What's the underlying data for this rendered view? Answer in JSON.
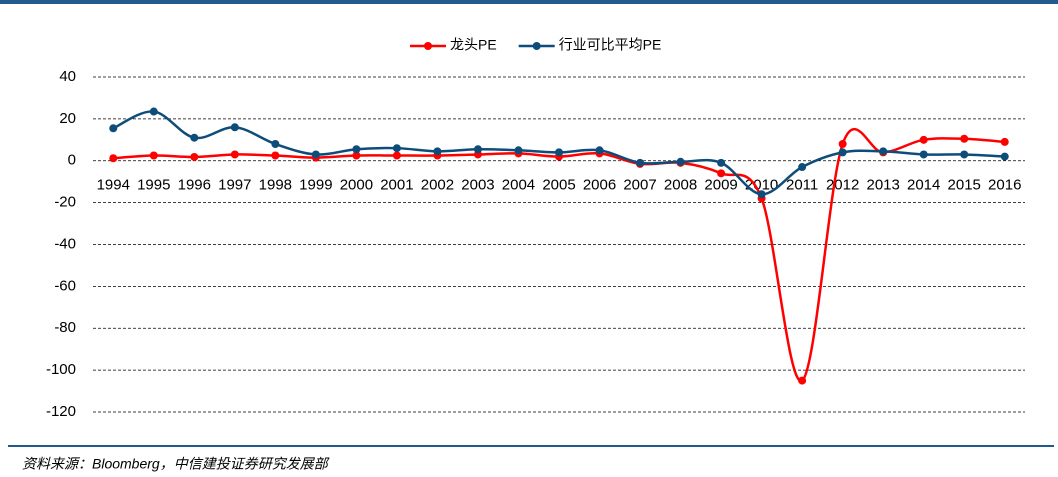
{
  "chart_data": {
    "type": "line",
    "categories": [
      "1994",
      "1995",
      "1996",
      "1997",
      "1998",
      "1999",
      "2000",
      "2001",
      "2002",
      "2003",
      "2004",
      "2005",
      "2006",
      "2007",
      "2008",
      "2009",
      "2010",
      "2011",
      "2012",
      "2013",
      "2014",
      "2015",
      "2016"
    ],
    "series": [
      {
        "name": "龙头PE",
        "color": "#ff0000",
        "values": [
          1.2,
          2.5,
          1.8,
          3,
          2.5,
          1.5,
          2.5,
          2.5,
          2.5,
          3,
          3.5,
          2,
          3.5,
          -1.5,
          -1,
          -6,
          -18,
          -105,
          8,
          4,
          10,
          10.5,
          9
        ]
      },
      {
        "name": "行业可比平均PE",
        "color": "#0e4d7a",
        "values": [
          15.5,
          23.5,
          11,
          16,
          8,
          3,
          5.5,
          6,
          4.5,
          5.5,
          5,
          4,
          5,
          -1,
          -0.5,
          -1,
          -16,
          -3,
          4,
          4.5,
          3,
          3,
          2
        ]
      }
    ],
    "ylim": [
      -120,
      40
    ],
    "yticks": [
      -120,
      -100,
      -80,
      -60,
      -40,
      -20,
      0,
      20,
      40
    ],
    "grid": true,
    "source": "资料来源：Bloomberg，中信建投证券研究发展部"
  }
}
